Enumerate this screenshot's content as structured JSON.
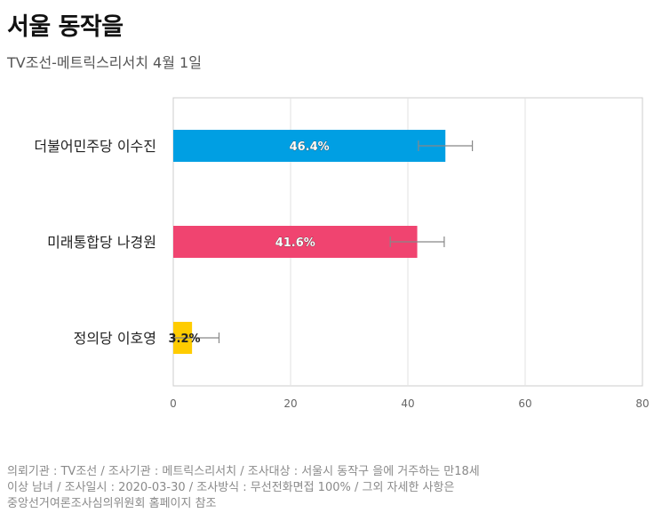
{
  "header": {
    "title": "서울 동작을",
    "subtitle": "TV조선-메트릭스리서치 4월 1일"
  },
  "footer": {
    "lines": [
      "의뢰기관 : TV조선 / 조사기관 : 메트릭스리서치 / 조사대상 : 서울시 동작구 을에 거주하는 만18세",
      "이상 남녀 / 조사일시 : 2020-03-30 / 조사방식 : 무선전화면접 100% / 그외 자세한 사항은",
      "중앙선거여론조사심의위원회 홈페이지 참조"
    ]
  },
  "chart_data": {
    "type": "bar",
    "orientation": "horizontal",
    "categories": [
      "더불어민주당 이수진",
      "미래통합당 나경원",
      "정의당 이호영"
    ],
    "values": [
      46.4,
      41.6,
      3.2
    ],
    "value_labels": [
      "46.4%",
      "41.6%",
      "3.2%"
    ],
    "error_margin": 4.6,
    "colors": [
      "#009fe3",
      "#f04470",
      "#ffcc00"
    ],
    "xlim": [
      0,
      80
    ],
    "xticks": [
      0,
      20,
      40,
      60,
      80
    ],
    "xtick_labels": [
      "0",
      "20",
      "40",
      "60",
      "80"
    ],
    "grid": true,
    "legend": "none"
  }
}
